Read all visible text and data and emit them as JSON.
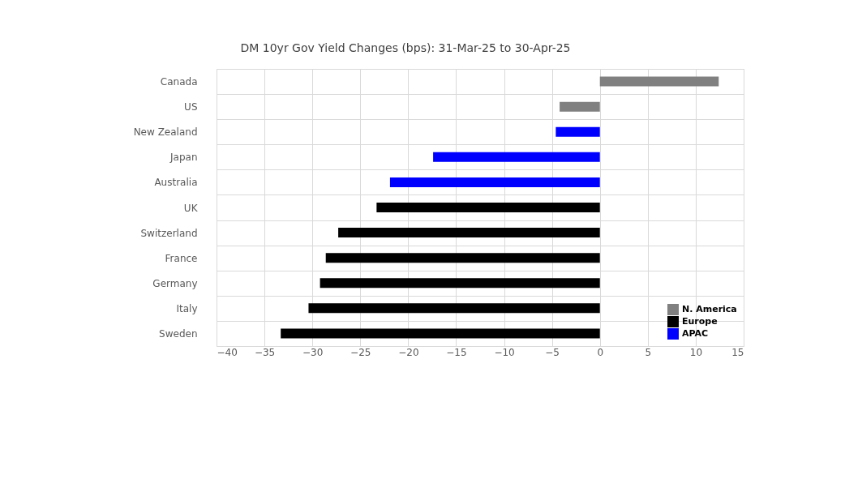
{
  "chart_data": {
    "type": "bar",
    "orientation": "horizontal",
    "title": "DM 10yr Gov Yield Changes (bps): 31-Mar-25 to 30-Apr-25",
    "categories": [
      "Canada",
      "US",
      "New Zealand",
      "Japan",
      "Australia",
      "UK",
      "Switzerland",
      "France",
      "Germany",
      "Italy",
      "Sweden"
    ],
    "series": [
      {
        "name": "N. America",
        "color": "#808080",
        "values": [
          12.4,
          -4.2,
          null,
          null,
          null,
          null,
          null,
          null,
          null,
          null,
          null
        ]
      },
      {
        "name": "Europe",
        "color": "#000000",
        "values": [
          null,
          null,
          null,
          null,
          null,
          -23.3,
          -27.3,
          -28.6,
          -29.2,
          -30.4,
          -33.3
        ]
      },
      {
        "name": "APAC",
        "color": "#0000ff",
        "values": [
          null,
          null,
          -4.6,
          -17.4,
          -21.9,
          null,
          null,
          null,
          null,
          null,
          null
        ]
      }
    ],
    "xlim": [
      -40,
      15
    ],
    "xticks": [
      -40,
      -35,
      -30,
      -25,
      -20,
      -15,
      -10,
      -5,
      0,
      5,
      10,
      15
    ],
    "grid": true,
    "legend": "bottom right"
  }
}
